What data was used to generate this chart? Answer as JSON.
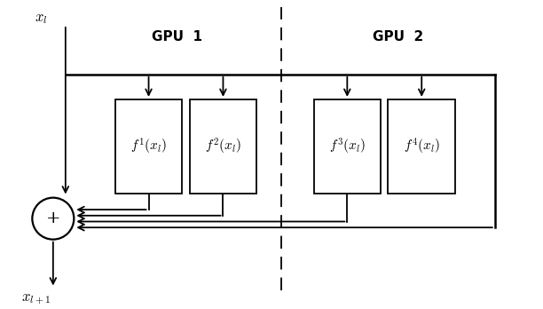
{
  "figsize": [
    6.12,
    3.48
  ],
  "dpi": 100,
  "bg_color": "white",
  "gpu1_label": "GPU  1",
  "gpu2_label": "GPU  2",
  "xl_label": "$x_l$",
  "xl1_label": "$x_{l+1}$",
  "sum_symbol": "+",
  "box_labels": [
    "$f^1(x_l)$",
    "$f^2(x_l)$",
    "$f^3(x_l)$",
    "$f^4(x_l)$"
  ],
  "lw": 1.3,
  "font_size_gpu": 11,
  "font_size_labels": 12,
  "font_size_box": 11
}
